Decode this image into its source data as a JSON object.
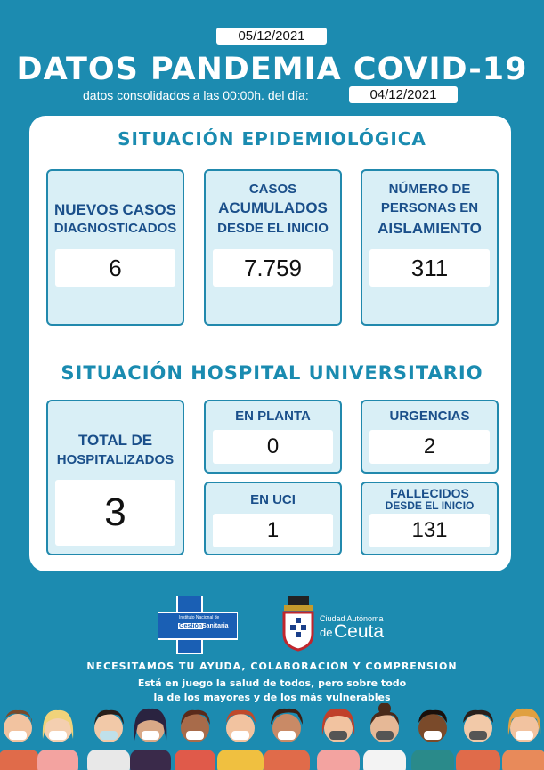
{
  "header": {
    "top_date": "05/12/2021",
    "title": "DATOS PANDEMIA COVID-19",
    "subtitle": "datos consolidados a las 00:00h. del día:",
    "consolidated_date": "04/12/2021"
  },
  "epidemiologica": {
    "title": "SITUACIÓN EPIDEMIOLÓGICA",
    "nuevos": {
      "line1": "NUEVOS CASOS",
      "line2": "DIAGNOSTICADOS",
      "value": "6"
    },
    "acumulados": {
      "line1": "CASOS",
      "line2": "ACUMULADOS",
      "line3": "DESDE EL INICIO",
      "value": "7.759"
    },
    "aislamiento": {
      "line1": "NÚMERO DE",
      "line2": "PERSONAS EN",
      "line3": "AISLAMIENTO",
      "value": "311"
    }
  },
  "hospital": {
    "title": "SITUACIÓN HOSPITAL UNIVERSITARIO",
    "total": {
      "line1": "TOTAL DE",
      "line2": "HOSPITALIZADOS",
      "value": "3"
    },
    "planta": {
      "label": "EN PLANTA",
      "value": "0"
    },
    "urgencias": {
      "label": "URGENCIAS",
      "value": "2"
    },
    "uci": {
      "label": "EN UCI",
      "value": "1"
    },
    "fallecidos": {
      "line1": "FALLECIDOS",
      "line2": "DESDE EL INICIO",
      "value": "131"
    }
  },
  "logos": {
    "ingesa": {
      "line1": "Instituto Nacional de",
      "gestion": "Gestión",
      "sanitaria": "Sanitaria"
    },
    "ceuta": {
      "line1": "Ciudad Autónoma",
      "de": "de",
      "name": "Ceuta"
    }
  },
  "footer": {
    "line1": "NECESITAMOS TU AYUDA, COLABORACIÓN  Y COMPRENSIÓN",
    "line2": "Está en juego la salud de todos, pero sobre todo",
    "line3": "la de los mayores y de los más vulnerables"
  }
}
